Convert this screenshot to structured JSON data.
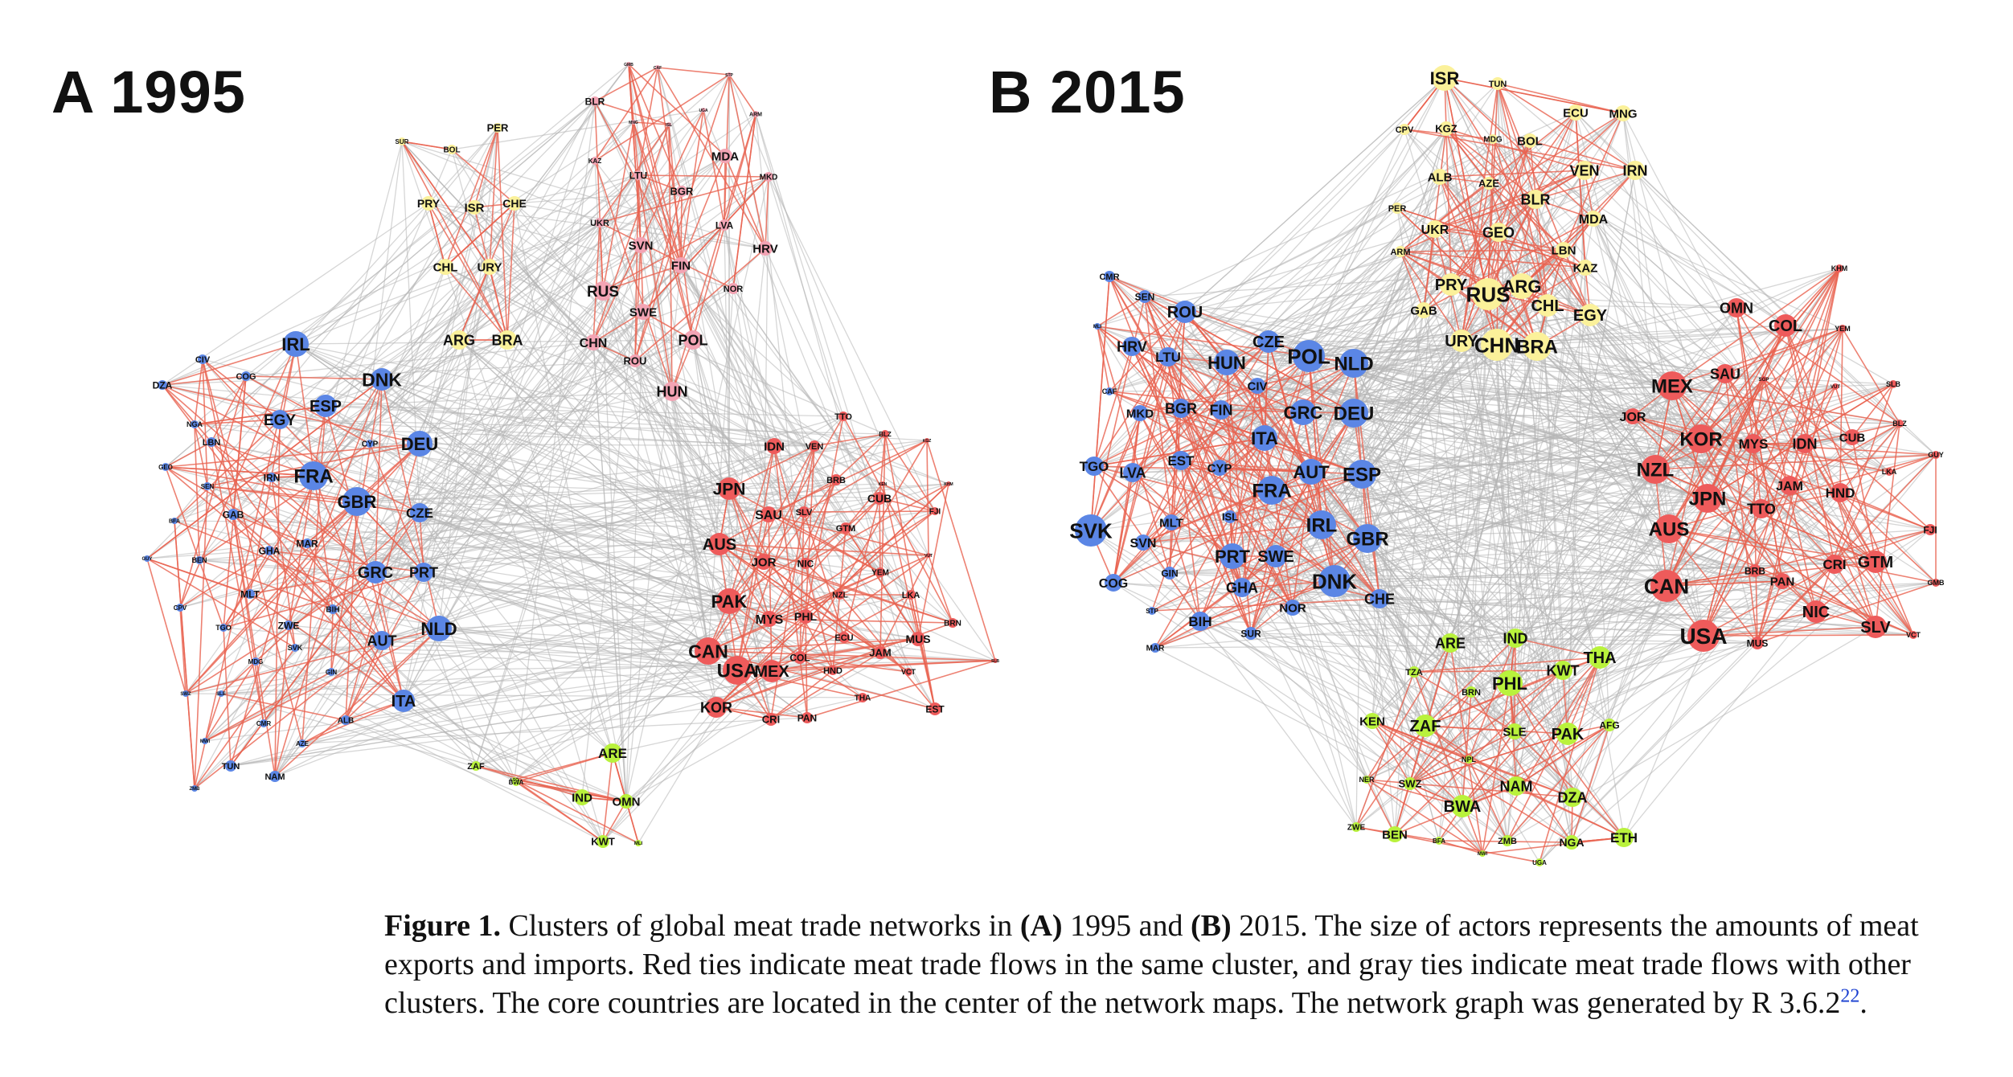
{
  "figure": {
    "panel_a_title": "A 1995",
    "panel_b_title": "B 2015",
    "caption_label": "Figure 1.",
    "caption_part1": "Clusters of global meat trade networks in ",
    "caption_a": "(A)",
    "caption_part2": " 1995 and ",
    "caption_b": "(B)",
    "caption_part3": " 2015. The size of actors represents the amounts of meat exports and imports. Red ties indicate meat trade flows in the same cluster, and gray ties indicate meat trade flows with other clusters. The core countries are located in the center of the network maps. The network graph was generated by R 3.6.2",
    "caption_ref": "22",
    "caption_end": "."
  },
  "colors": {
    "blue": "#5b86e5",
    "red": "#ee5b5b",
    "pink": "#f3a4b4",
    "yellow": "#fbf19a",
    "green": "#b9f23c",
    "red_tie": "#e8624f",
    "gray_tie": "#b4b4b4"
  },
  "network_1995": {
    "blue": [
      "IRL",
      "DNK",
      "ESP",
      "EGY",
      "DEU",
      "FRA",
      "GBR",
      "CZE",
      "GRC",
      "PRT",
      "NLD",
      "AUT",
      "ITA",
      "DZA",
      "CIV",
      "COG",
      "NGA",
      "LBN",
      "GEO",
      "IRN",
      "CYP",
      "SEN",
      "BFA",
      "GAB",
      "MAR",
      "GHA",
      "GUY",
      "BEN",
      "CPV",
      "MLT",
      "BIH",
      "TGO",
      "ZWE",
      "MDG",
      "SVK",
      "GIN",
      "SWZ",
      "SLE",
      "ALB",
      "CMR",
      "MWI",
      "AZE",
      "TUN",
      "NAM",
      "ZMB"
    ],
    "yellow": [
      "PER",
      "SUR",
      "BOL",
      "PRY",
      "ISR",
      "CHE",
      "CHL",
      "URY",
      "ARG",
      "BRA"
    ],
    "pink": [
      "BLR",
      "GMB",
      "CAF",
      "ARM",
      "MNG",
      "ISL",
      "UGA",
      "STP",
      "MDA",
      "KAZ",
      "LTU",
      "BGR",
      "MKD",
      "UKR",
      "LVA",
      "SVN",
      "FIN",
      "HRV",
      "RUS",
      "NOR",
      "SWE",
      "CHN",
      "ROU",
      "POL",
      "HUN"
    ],
    "red": [
      "TTO",
      "BLZ",
      "KGZ",
      "IDN",
      "VEN",
      "JPN",
      "BRB",
      "KEN",
      "KHM",
      "SAU",
      "SLV",
      "CUB",
      "FJI",
      "GTM",
      "AUS",
      "JOR",
      "NIC",
      "VUT",
      "YEM",
      "NZL",
      "PAK",
      "LKA",
      "MYS",
      "PHL",
      "ECU",
      "MUS",
      "BRN",
      "CAN",
      "COL",
      "JAM",
      "SLB",
      "USA",
      "MEX",
      "HND",
      "VCT",
      "KOR",
      "THA",
      "CRI",
      "PAN",
      "EST"
    ],
    "green": [
      "ARE",
      "ZAF",
      "BWA",
      "IND",
      "OMN",
      "KWT",
      "MLI",
      "LSO"
    ]
  },
  "network_2015": {
    "yellow": [
      "ISR",
      "TUN",
      "ECU",
      "MNG",
      "CPV",
      "KGZ",
      "MDG",
      "BOL",
      "VEN",
      "IRN",
      "ALB",
      "AZE",
      "BLR",
      "MDA",
      "PER",
      "UKR",
      "GEO",
      "LBN",
      "ARM",
      "KAZ",
      "PRY",
      "RUS",
      "ARG",
      "CHL",
      "GAB",
      "EGY",
      "URY",
      "CHN",
      "BRA"
    ],
    "blue": [
      "CMR",
      "SEN",
      "ROU",
      "MLI",
      "HRV",
      "CZE",
      "LTU",
      "HUN",
      "POL",
      "NLD",
      "CIV",
      "CAF",
      "MKD",
      "BGR",
      "FIN",
      "GRC",
      "DEU",
      "ITA",
      "TGO",
      "LVA",
      "EST",
      "CYP",
      "AUT",
      "ESP",
      "FRA",
      "MLT",
      "ISL",
      "SVK",
      "SVN",
      "IRL",
      "GBR",
      "PRT",
      "SWE",
      "COG",
      "GIN",
      "GHA",
      "DNK",
      "CHE",
      "STP",
      "NOR",
      "BIH",
      "SUR",
      "MAR"
    ],
    "red": [
      "KHM",
      "OMN",
      "COL",
      "YEM",
      "MEX",
      "SAU",
      "SGP",
      "VUT",
      "SLB",
      "JOR",
      "BLZ",
      "KOR",
      "MYS",
      "IDN",
      "CUB",
      "GUY",
      "NZL",
      "JAM",
      "LKA",
      "JPN",
      "HND",
      "TTO",
      "AUS",
      "FJI",
      "BRB",
      "CRI",
      "GTM",
      "PAN",
      "CAN",
      "NIC",
      "GMB",
      "SLV",
      "USA",
      "MUS",
      "VCT"
    ],
    "green": [
      "ARE",
      "IND",
      "THA",
      "TZA",
      "KWT",
      "BRN",
      "PHL",
      "KEN",
      "ZAF",
      "SLE",
      "PAK",
      "AFG",
      "NPL",
      "NER",
      "SWZ",
      "NAM",
      "BWA",
      "DZA",
      "ZWE",
      "BEN",
      "BFA",
      "ZMB",
      "NGA",
      "ETH",
      "MWI",
      "UGA"
    ]
  }
}
